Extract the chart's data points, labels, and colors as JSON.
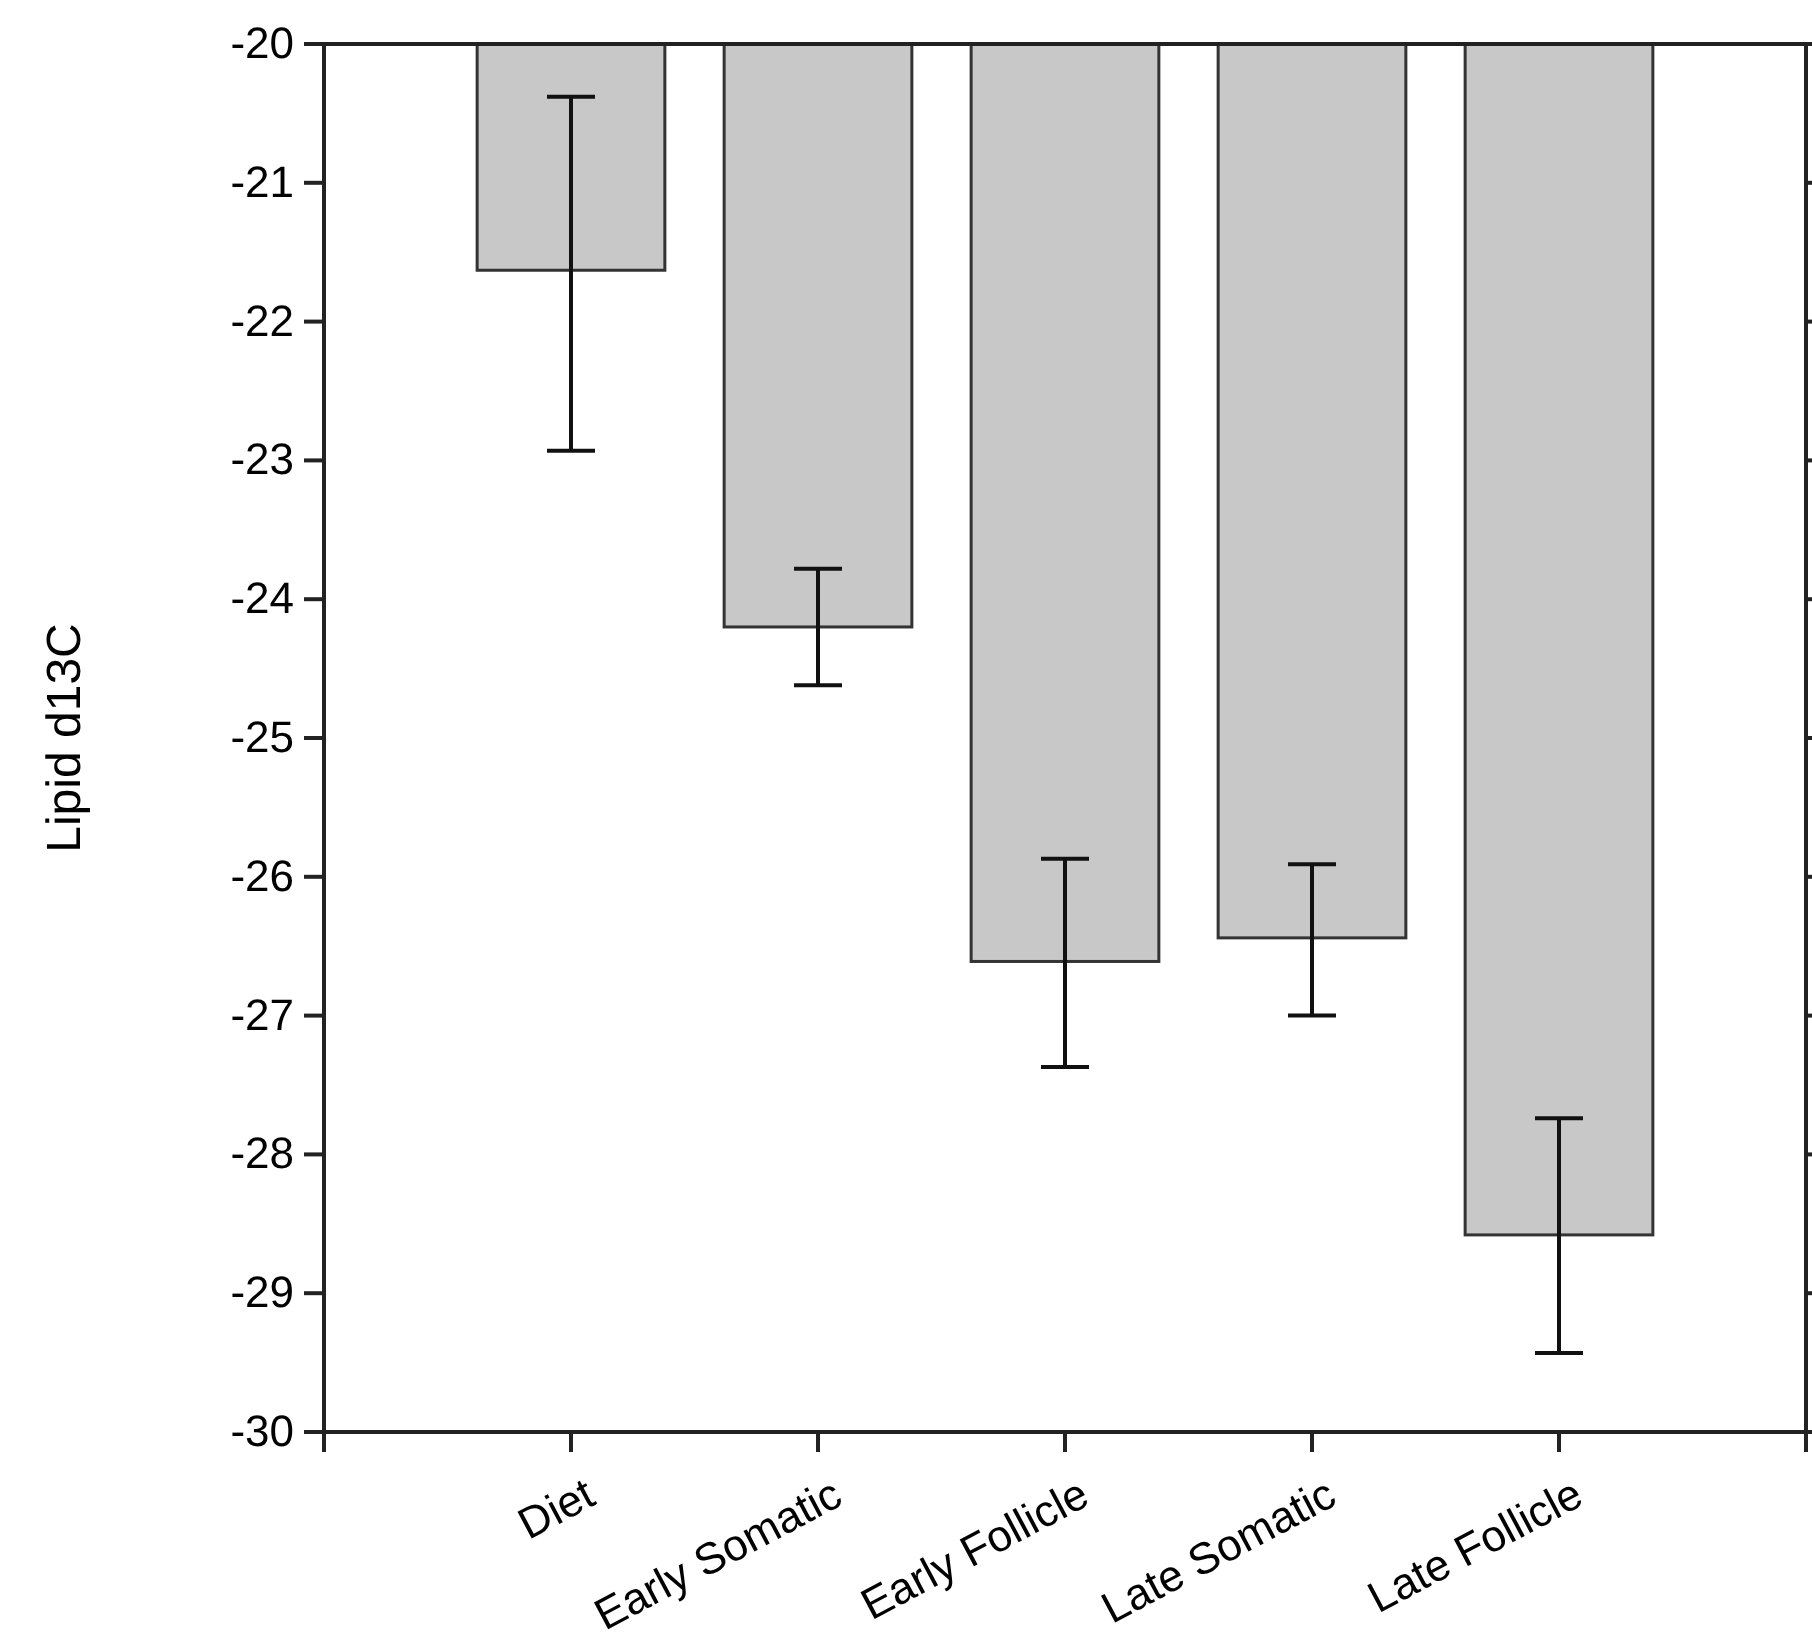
{
  "chart_data": {
    "type": "bar",
    "ylabel": "Lipid d13C",
    "categories": [
      "Diet",
      "Early Somatic",
      "Early Follicle",
      "Late Somatic",
      "Late Follicle"
    ],
    "values": [
      -21.63,
      -24.2,
      -26.61,
      -26.44,
      -28.58
    ],
    "errors": [
      [
        -22.93,
        -20.38
      ],
      [
        -24.62,
        -23.78
      ],
      [
        -27.37,
        -25.87
      ],
      [
        -27.0,
        -25.91
      ],
      [
        -29.43,
        -27.74
      ]
    ],
    "color": "#c8c8c8",
    "ylim": [
      -30,
      -20
    ],
    "yticks": [
      -30,
      -29,
      -28,
      -27,
      -26,
      -25,
      -24,
      -23,
      -22,
      -21,
      -20
    ],
    "grid": false
  }
}
